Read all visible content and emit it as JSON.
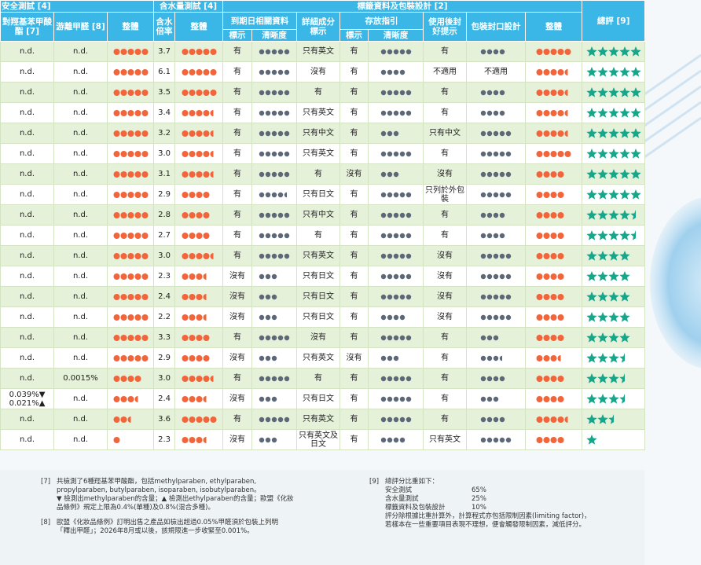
{
  "table": {
    "header_row1": [
      "安全測試 [4]",
      "含水量測試 [4]",
      "標籤資料及包裝設計 [2]",
      "總評 [9]"
    ],
    "header_row2": [
      "對羥基苯甲酸酯 [7]",
      "游離甲醛 [8]",
      "整體",
      "含水倍率",
      "整體",
      "到期日相關資料",
      "詳細成分標示",
      "存放指引",
      "使用後封好提示",
      "包裝封口設計",
      "整體"
    ],
    "header_row3": [
      "標示",
      "清晰度",
      "標示",
      "清晰度"
    ],
    "rows": [
      [
        "n.d.",
        "n.d.",
        5,
        "3.7",
        5,
        "有",
        5,
        "只有英文",
        "有",
        5,
        "有",
        4,
        5,
        5
      ],
      [
        "n.d.",
        "n.d.",
        5,
        "6.1",
        5,
        "有",
        5,
        "沒有",
        "有",
        4,
        "不適用",
        "不適用",
        4.5,
        5
      ],
      [
        "n.d.",
        "n.d.",
        5,
        "3.5",
        5,
        "有",
        5,
        "有",
        "有",
        5,
        "有",
        4,
        4.5,
        5
      ],
      [
        "n.d.",
        "n.d.",
        5,
        "3.4",
        4.5,
        "有",
        5,
        "只有英文",
        "有",
        5,
        "有",
        4,
        4.5,
        5
      ],
      [
        "n.d.",
        "n.d.",
        5,
        "3.2",
        4.5,
        "有",
        5,
        "只有中文",
        "有",
        3,
        "只有中文",
        5,
        4.5,
        5
      ],
      [
        "n.d.",
        "n.d.",
        5,
        "3.0",
        4.5,
        "有",
        5,
        "只有英文",
        "有",
        5,
        "有",
        5,
        5,
        5
      ],
      [
        "n.d.",
        "n.d.",
        5,
        "3.1",
        4.5,
        "有",
        5,
        "有",
        "沒有",
        3,
        "沒有",
        5,
        4,
        5
      ],
      [
        "n.d.",
        "n.d.",
        5,
        "2.9",
        4,
        "有",
        4.5,
        "只有日文",
        "有",
        5,
        "只列於外包裝",
        5,
        4,
        5
      ],
      [
        "n.d.",
        "n.d.",
        5,
        "2.8",
        4,
        "有",
        5,
        "只有中文",
        "有",
        5,
        "有",
        4,
        4,
        4.5
      ],
      [
        "n.d.",
        "n.d.",
        5,
        "2.7",
        4,
        "有",
        5,
        "有",
        "有",
        5,
        "有",
        4,
        4,
        4.5
      ],
      [
        "n.d.",
        "n.d.",
        5,
        "3.0",
        4.5,
        "有",
        5,
        "只有英文",
        "有",
        5,
        "沒有",
        5,
        4,
        4
      ],
      [
        "n.d.",
        "n.d.",
        5,
        "2.3",
        3.5,
        "沒有",
        3,
        "只有日文",
        "有",
        5,
        "沒有",
        5,
        4,
        4
      ],
      [
        "n.d.",
        "n.d.",
        5,
        "2.4",
        3.5,
        "沒有",
        3,
        "只有日文",
        "有",
        5,
        "沒有",
        5,
        4,
        4
      ],
      [
        "n.d.",
        "n.d.",
        5,
        "2.2",
        3.5,
        "沒有",
        3,
        "只有日文",
        "有",
        4,
        "沒有",
        5,
        4,
        4
      ],
      [
        "n.d.",
        "n.d.",
        5,
        "3.3",
        4,
        "有",
        5,
        "沒有",
        "有",
        5,
        "有",
        3,
        4,
        4
      ],
      [
        "n.d.",
        "n.d.",
        5,
        "2.9",
        4,
        "沒有",
        3,
        "只有英文",
        "沒有",
        3,
        "有",
        3.5,
        3.5,
        3.5
      ],
      [
        "n.d.",
        "0.0015%",
        4,
        "3.0",
        4.5,
        "有",
        5,
        "有",
        "有",
        5,
        "有",
        4,
        4,
        3.5
      ],
      [
        "0.039%▼ 0.021%▲",
        "n.d.",
        3.5,
        "2.4",
        3.5,
        "沒有",
        3,
        "只有日文",
        "有",
        5,
        "有",
        3,
        4,
        3.5
      ],
      [
        "n.d.",
        "n.d.",
        2.5,
        "3.6",
        5,
        "有",
        5,
        "只有英文",
        "有",
        5,
        "有",
        4,
        4.5,
        2.5
      ],
      [
        "n.d.",
        "n.d.",
        1,
        "2.3",
        3.5,
        "沒有",
        3,
        "只有英文及日文",
        "有",
        4,
        "只有英文",
        5,
        4,
        1
      ]
    ]
  },
  "notes": [
    {
      "label": "[7]",
      "lines": [
        "共檢測了6種羥基苯甲酸酯，包括methylparaben, ethylparaben,",
        "propylparaben, butylparaben, isoparaben, isobutylparaben。",
        "▼ 檢測出methylparaben的含量；▲ 檢測出ethylparaben的含量；歐盟《化妝",
        "品條例》規定上限為0.4%(單種)及0.8%(混合多種)。"
      ]
    },
    {
      "label": "[8]",
      "lines": [
        "歐盟《化妝品條例》訂明出售之產品如檢出超過0.05%甲醛須於包裝上列明",
        "「釋出甲醛」；2026年8月或以後，該規限進一步收緊至0.001%。"
      ]
    },
    {
      "label": "[9]",
      "intro": "總評分比重如下：",
      "weights": [
        {
          "name": "安全測試",
          "value": "65%"
        },
        {
          "name": "含水量測試",
          "value": "25%"
        },
        {
          "name": "標籤資料及包裝設計",
          "value": "10%"
        }
      ],
      "lines": [
        "評分除根據比重計算外，計算程式亦包括限制因素(limiting factor)，",
        "若樣本在一些重要項目表現不理想，便會觸發限制因素，減低評分。"
      ]
    }
  ]
}
